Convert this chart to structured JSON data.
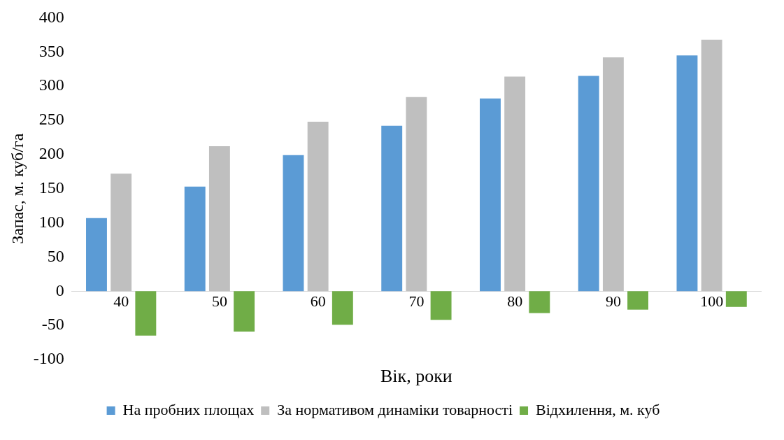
{
  "chart_data": {
    "type": "bar",
    "xlabel": "Вік, роки",
    "ylabel": "Запас, м. куб/га",
    "categories": [
      "40",
      "50",
      "60",
      "70",
      "80",
      "90",
      "100"
    ],
    "series": [
      {
        "name": "На пробних площах",
        "color": "#5b9bd5",
        "values": [
          107,
          153,
          199,
          242,
          282,
          315,
          345
        ]
      },
      {
        "name": "За нормативом динаміки товарності",
        "color": "#bfbfbf",
        "values": [
          172,
          212,
          248,
          284,
          314,
          342,
          368
        ]
      },
      {
        "name": "Відхилення, м. куб",
        "color": "#70ad47",
        "values": [
          -65,
          -59,
          -49,
          -42,
          -32,
          -27,
          -23
        ]
      }
    ],
    "ylim": [
      -100,
      400
    ],
    "yticks": [
      -100,
      -50,
      0,
      50,
      100,
      150,
      200,
      250,
      300,
      350,
      400
    ],
    "grid": false,
    "legend": "bottom"
  }
}
